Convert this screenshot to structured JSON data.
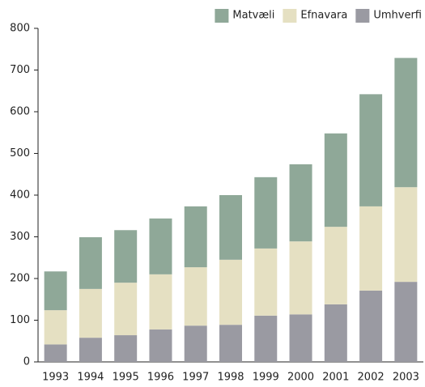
{
  "chart_data": {
    "type": "stacked-bar",
    "categories": [
      "1993",
      "1994",
      "1995",
      "1996",
      "1997",
      "1998",
      "1999",
      "2000",
      "2001",
      "2002",
      "2003"
    ],
    "series": [
      {
        "name": "Matvæli",
        "color": "#8fa898",
        "values": [
          93,
          124,
          126,
          134,
          146,
          155,
          171,
          185,
          224,
          269,
          310
        ]
      },
      {
        "name": "Efnavara",
        "color": "#e5e0c2",
        "values": [
          82,
          117,
          126,
          132,
          140,
          156,
          161,
          175,
          186,
          202,
          227
        ]
      },
      {
        "name": "Umhverfi",
        "color": "#9a9aa2",
        "values": [
          42,
          58,
          64,
          78,
          87,
          89,
          111,
          114,
          138,
          171,
          192
        ]
      }
    ],
    "ylim": [
      0,
      800
    ],
    "yticks": [
      0,
      100,
      200,
      300,
      400,
      500,
      600,
      700,
      800
    ],
    "legend": "top-right"
  }
}
